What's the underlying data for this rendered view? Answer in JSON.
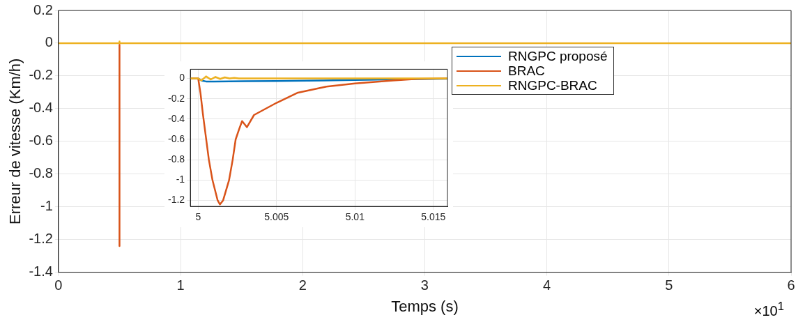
{
  "chart_data": [
    {
      "type": "line",
      "xlabel": "Temps (s)",
      "ylabel": "Erreur de vitesse (Km/h)",
      "xlim": [
        0,
        6
      ],
      "xticks": [
        0,
        1,
        2,
        3,
        4,
        5,
        6
      ],
      "ylim": [
        -1.4,
        0.2
      ],
      "yticks": [
        -1.4,
        -1.2,
        -1,
        -0.8,
        -0.6,
        -0.4,
        -0.2,
        0,
        0.2
      ],
      "grid": true,
      "annotations": [
        "×10$^{1}$"
      ],
      "series": [
        {
          "color": "#d95319",
          "x": [
            0.5,
            0.5
          ],
          "values": [
            -0.01,
            -1.24
          ]
        },
        {
          "color": "#edb120",
          "x": [
            0,
            0.5,
            0.5,
            0.5,
            6
          ],
          "values": [
            0,
            0,
            0.01,
            0,
            0
          ]
        }
      ]
    },
    {
      "type": "line",
      "xlim": [
        4.9995,
        5.0159
      ],
      "xticks": [
        5,
        5.005,
        5.01,
        5.015
      ],
      "ylim": [
        -1.26,
        0.09
      ],
      "yticks": [
        -1.2,
        -1,
        -0.8,
        -0.6,
        -0.4,
        -0.2,
        0
      ],
      "grid": true,
      "legend": "right",
      "series": [
        {
          "name": "RNGPC proposé",
          "color": "#0072bd",
          "x": [
            4.9995,
            5,
            5.0002,
            5.0005,
            5.001,
            5.003,
            5.005,
            5.008,
            5.01,
            5.013,
            5.0159
          ],
          "values": [
            0,
            0,
            -0.02,
            -0.03,
            -0.03,
            -0.028,
            -0.025,
            -0.02,
            -0.015,
            -0.008,
            -0.003
          ]
        },
        {
          "name": "BRAC",
          "color": "#d95319",
          "x": [
            4.9995,
            5,
            5.00015,
            5.0003,
            5.00068,
            5.00091,
            5.00124,
            5.00139,
            5.00159,
            5.00197,
            5.0022,
            5.00239,
            5.00261,
            5.0028,
            5.00311,
            5.00356,
            5.005,
            5.00636,
            5.00818,
            5.01,
            5.01242,
            5.01394,
            5.01583
          ],
          "values": [
            0,
            0,
            -0.15,
            -0.35,
            -0.8,
            -1.0,
            -1.2,
            -1.24,
            -1.2,
            -1.0,
            -0.8,
            -0.6,
            -0.5,
            -0.42,
            -0.48,
            -0.36,
            -0.24,
            -0.14,
            -0.08,
            -0.05,
            -0.02,
            -0.005,
            0
          ]
        },
        {
          "name": "RNGPC-BRAC",
          "color": "#edb120",
          "x": [
            4.9995,
            5,
            5.0002,
            5.0005,
            5.0008,
            5.0011,
            5.0014,
            5.0017,
            5.002,
            5.0023,
            5.0026,
            5.003,
            5.0159
          ],
          "values": [
            0,
            0,
            -0.02,
            0.02,
            -0.01,
            0.015,
            -0.005,
            0.01,
            0,
            0.005,
            0,
            0,
            0
          ]
        }
      ]
    }
  ]
}
